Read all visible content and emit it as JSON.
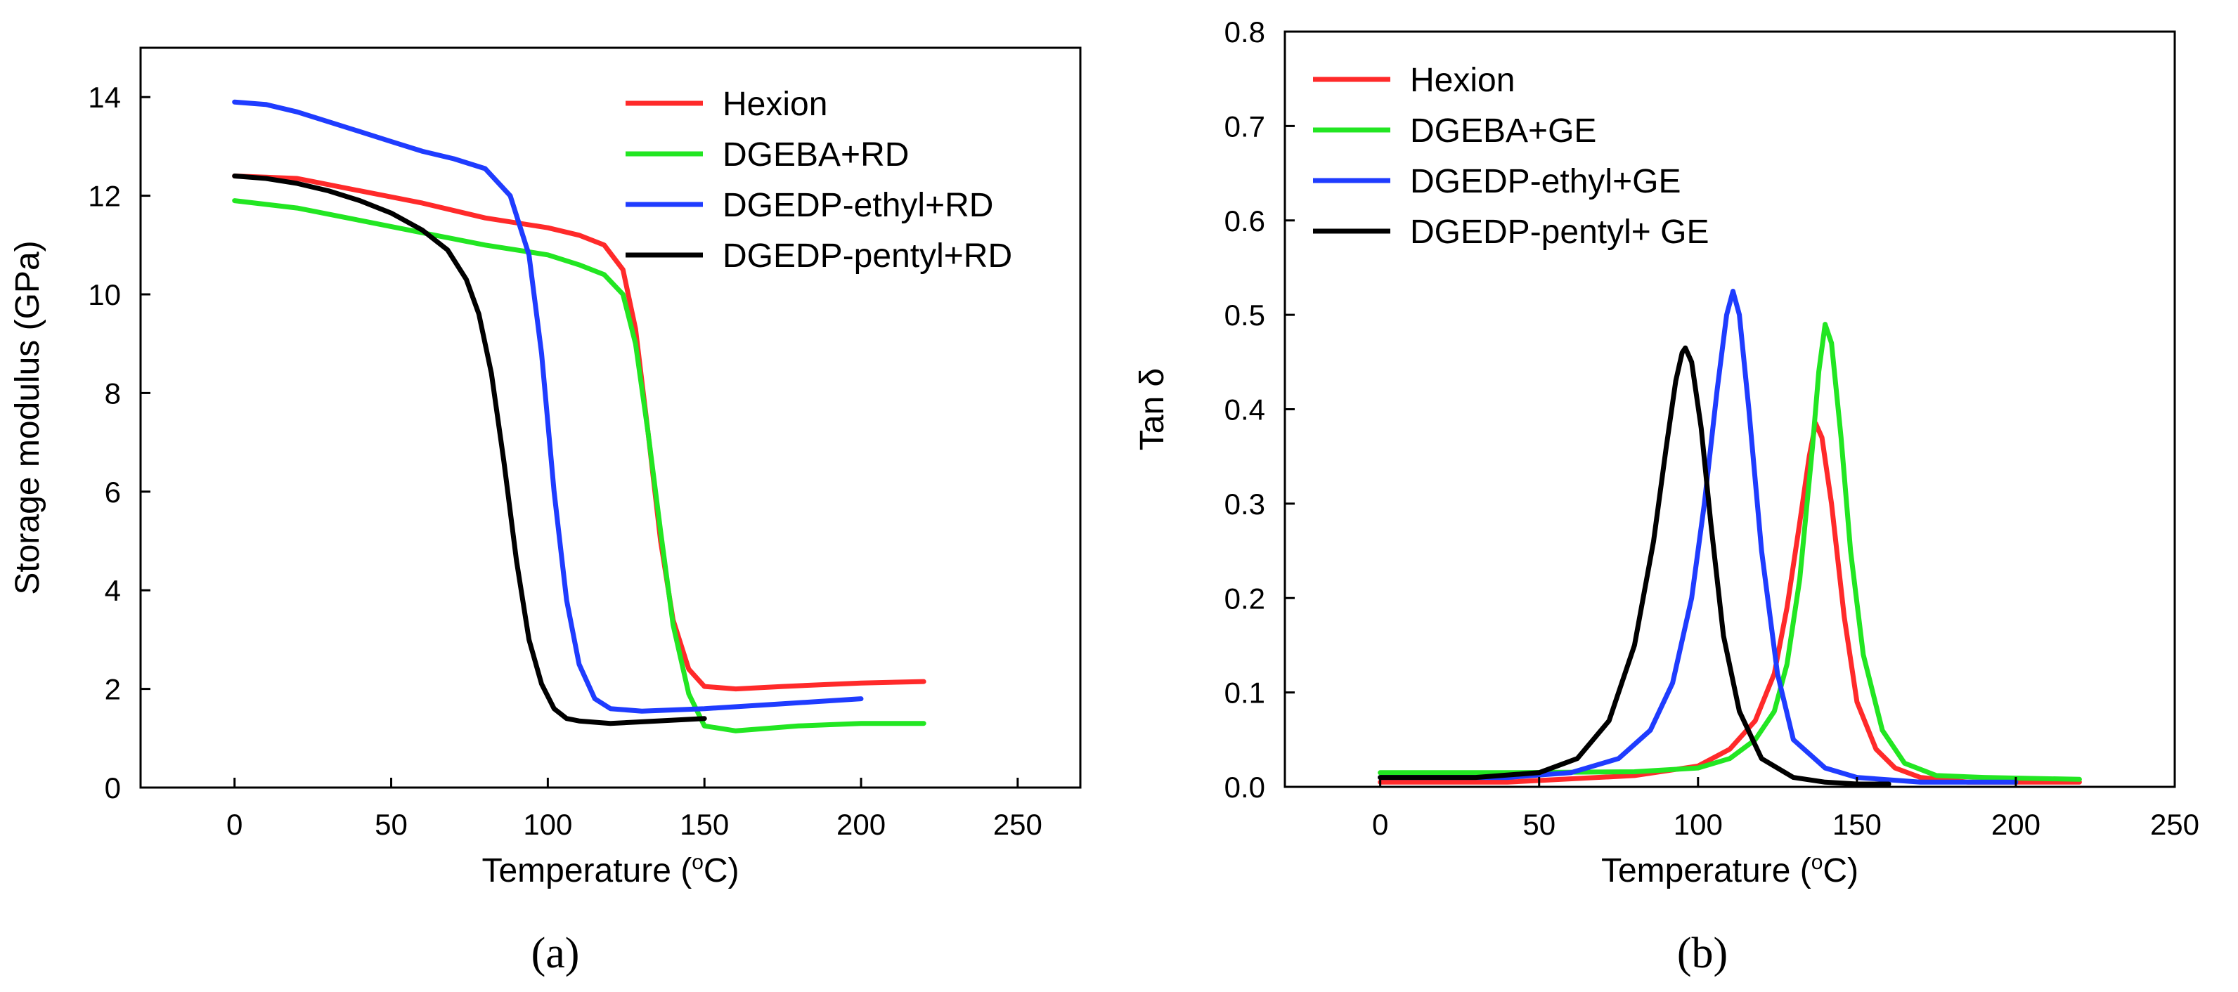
{
  "chart_data": [
    {
      "type": "line",
      "panel_label": "(a)",
      "title": "",
      "xlabel_prefix": "Temperature (",
      "xlabel_sup": "o",
      "xlabel_suffix": "C)",
      "ylabel": "Storage modulus (GPa)",
      "xlim": [
        -30,
        270
      ],
      "ylim": [
        0,
        15
      ],
      "xticks": [
        0,
        50,
        100,
        150,
        200,
        250
      ],
      "xtick_labels": [
        "0",
        "50",
        "100",
        "150",
        "200",
        "250"
      ],
      "yticks": [
        0,
        2,
        4,
        6,
        8,
        10,
        12,
        14
      ],
      "ytick_labels": [
        "0",
        "2",
        "4",
        "6",
        "8",
        "10",
        "12",
        "14"
      ],
      "grid": false,
      "legend_position": "top-right",
      "series": [
        {
          "name": "Hexion",
          "color": "#ff2a2a",
          "x": [
            0,
            20,
            40,
            60,
            80,
            100,
            110,
            118,
            124,
            128,
            132,
            136,
            140,
            145,
            150,
            160,
            175,
            200,
            220
          ],
          "y": [
            12.4,
            12.35,
            12.1,
            11.85,
            11.55,
            11.35,
            11.2,
            11.0,
            10.5,
            9.3,
            7.2,
            5.0,
            3.4,
            2.4,
            2.05,
            2.0,
            2.05,
            2.12,
            2.15
          ]
        },
        {
          "name": "DGEBA+RD",
          "color": "#22e622",
          "x": [
            0,
            20,
            40,
            60,
            80,
            100,
            110,
            118,
            124,
            128,
            132,
            136,
            140,
            145,
            150,
            160,
            180,
            200,
            220
          ],
          "y": [
            11.9,
            11.75,
            11.5,
            11.25,
            11.0,
            10.8,
            10.6,
            10.4,
            10.0,
            9.0,
            7.2,
            5.2,
            3.3,
            1.9,
            1.25,
            1.15,
            1.25,
            1.3,
            1.3
          ]
        },
        {
          "name": "DGEDP-ethyl+RD",
          "color": "#1f3cff",
          "x": [
            0,
            10,
            20,
            30,
            40,
            50,
            60,
            70,
            80,
            88,
            94,
            98,
            102,
            106,
            110,
            115,
            120,
            130,
            150,
            175,
            200
          ],
          "y": [
            13.9,
            13.85,
            13.7,
            13.5,
            13.3,
            13.1,
            12.9,
            12.75,
            12.55,
            12.0,
            10.8,
            8.8,
            6.0,
            3.8,
            2.5,
            1.8,
            1.6,
            1.55,
            1.6,
            1.7,
            1.8
          ]
        },
        {
          "name": "DGEDP-pentyl+RD",
          "color": "#000000",
          "x": [
            0,
            10,
            20,
            30,
            40,
            50,
            60,
            68,
            74,
            78,
            82,
            86,
            90,
            94,
            98,
            102,
            106,
            110,
            120,
            135,
            150
          ],
          "y": [
            12.4,
            12.35,
            12.25,
            12.1,
            11.9,
            11.65,
            11.3,
            10.9,
            10.3,
            9.6,
            8.4,
            6.6,
            4.6,
            3.0,
            2.1,
            1.6,
            1.4,
            1.35,
            1.3,
            1.35,
            1.4
          ]
        }
      ]
    },
    {
      "type": "line",
      "panel_label": "(b)",
      "title": "",
      "xlabel_prefix": "Temperature (",
      "xlabel_sup": "o",
      "xlabel_suffix": "C)",
      "ylabel": "Tan δ",
      "xlim": [
        -30,
        250
      ],
      "ylim": [
        0,
        0.8
      ],
      "xticks": [
        0,
        50,
        100,
        150,
        200,
        250
      ],
      "xtick_labels": [
        "0",
        "50",
        "100",
        "150",
        "200",
        "250"
      ],
      "yticks": [
        0,
        0.1,
        0.2,
        0.3,
        0.4,
        0.5,
        0.6,
        0.7,
        0.8
      ],
      "ytick_labels": [
        "0.0",
        "0.1",
        "0.2",
        "0.3",
        "0.4",
        "0.5",
        "0.6",
        "0.7",
        "0.8"
      ],
      "grid": false,
      "legend_position": "top-left",
      "series": [
        {
          "name": "Hexion",
          "color": "#ff2a2a",
          "x": [
            0,
            40,
            80,
            100,
            110,
            118,
            124,
            128,
            132,
            135,
            137,
            139,
            142,
            146,
            150,
            156,
            162,
            170,
            185,
            200,
            220
          ],
          "y": [
            0.005,
            0.005,
            0.012,
            0.022,
            0.04,
            0.07,
            0.12,
            0.19,
            0.28,
            0.35,
            0.385,
            0.37,
            0.3,
            0.18,
            0.09,
            0.04,
            0.02,
            0.01,
            0.005,
            0.005,
            0.005
          ]
        },
        {
          "name": "DGEBA+GE",
          "color": "#22e622",
          "x": [
            0,
            40,
            80,
            100,
            110,
            118,
            124,
            128,
            132,
            136,
            138,
            140,
            142,
            145,
            148,
            152,
            158,
            165,
            175,
            190,
            220
          ],
          "y": [
            0.015,
            0.015,
            0.016,
            0.02,
            0.03,
            0.05,
            0.08,
            0.13,
            0.22,
            0.36,
            0.44,
            0.49,
            0.47,
            0.37,
            0.25,
            0.14,
            0.06,
            0.025,
            0.012,
            0.01,
            0.008
          ]
        },
        {
          "name": "DGEDP-ethyl+GE",
          "color": "#1f3cff",
          "x": [
            0,
            40,
            60,
            75,
            85,
            92,
            98,
            102,
            106,
            109,
            111,
            113,
            116,
            120,
            125,
            130,
            140,
            150,
            170,
            200
          ],
          "y": [
            0.01,
            0.01,
            0.015,
            0.03,
            0.06,
            0.11,
            0.2,
            0.3,
            0.42,
            0.5,
            0.525,
            0.5,
            0.4,
            0.25,
            0.12,
            0.05,
            0.02,
            0.01,
            0.005,
            0.005
          ]
        },
        {
          "name": "DGEDP-pentyl+ GE",
          "color": "#000000",
          "x": [
            0,
            30,
            50,
            62,
            72,
            80,
            86,
            90,
            93,
            95,
            96,
            98,
            101,
            104,
            108,
            113,
            120,
            130,
            140,
            150,
            160
          ],
          "y": [
            0.01,
            0.01,
            0.015,
            0.03,
            0.07,
            0.15,
            0.26,
            0.36,
            0.43,
            0.46,
            0.465,
            0.45,
            0.38,
            0.28,
            0.16,
            0.08,
            0.03,
            0.01,
            0.005,
            0.003,
            0.003
          ]
        }
      ]
    }
  ]
}
